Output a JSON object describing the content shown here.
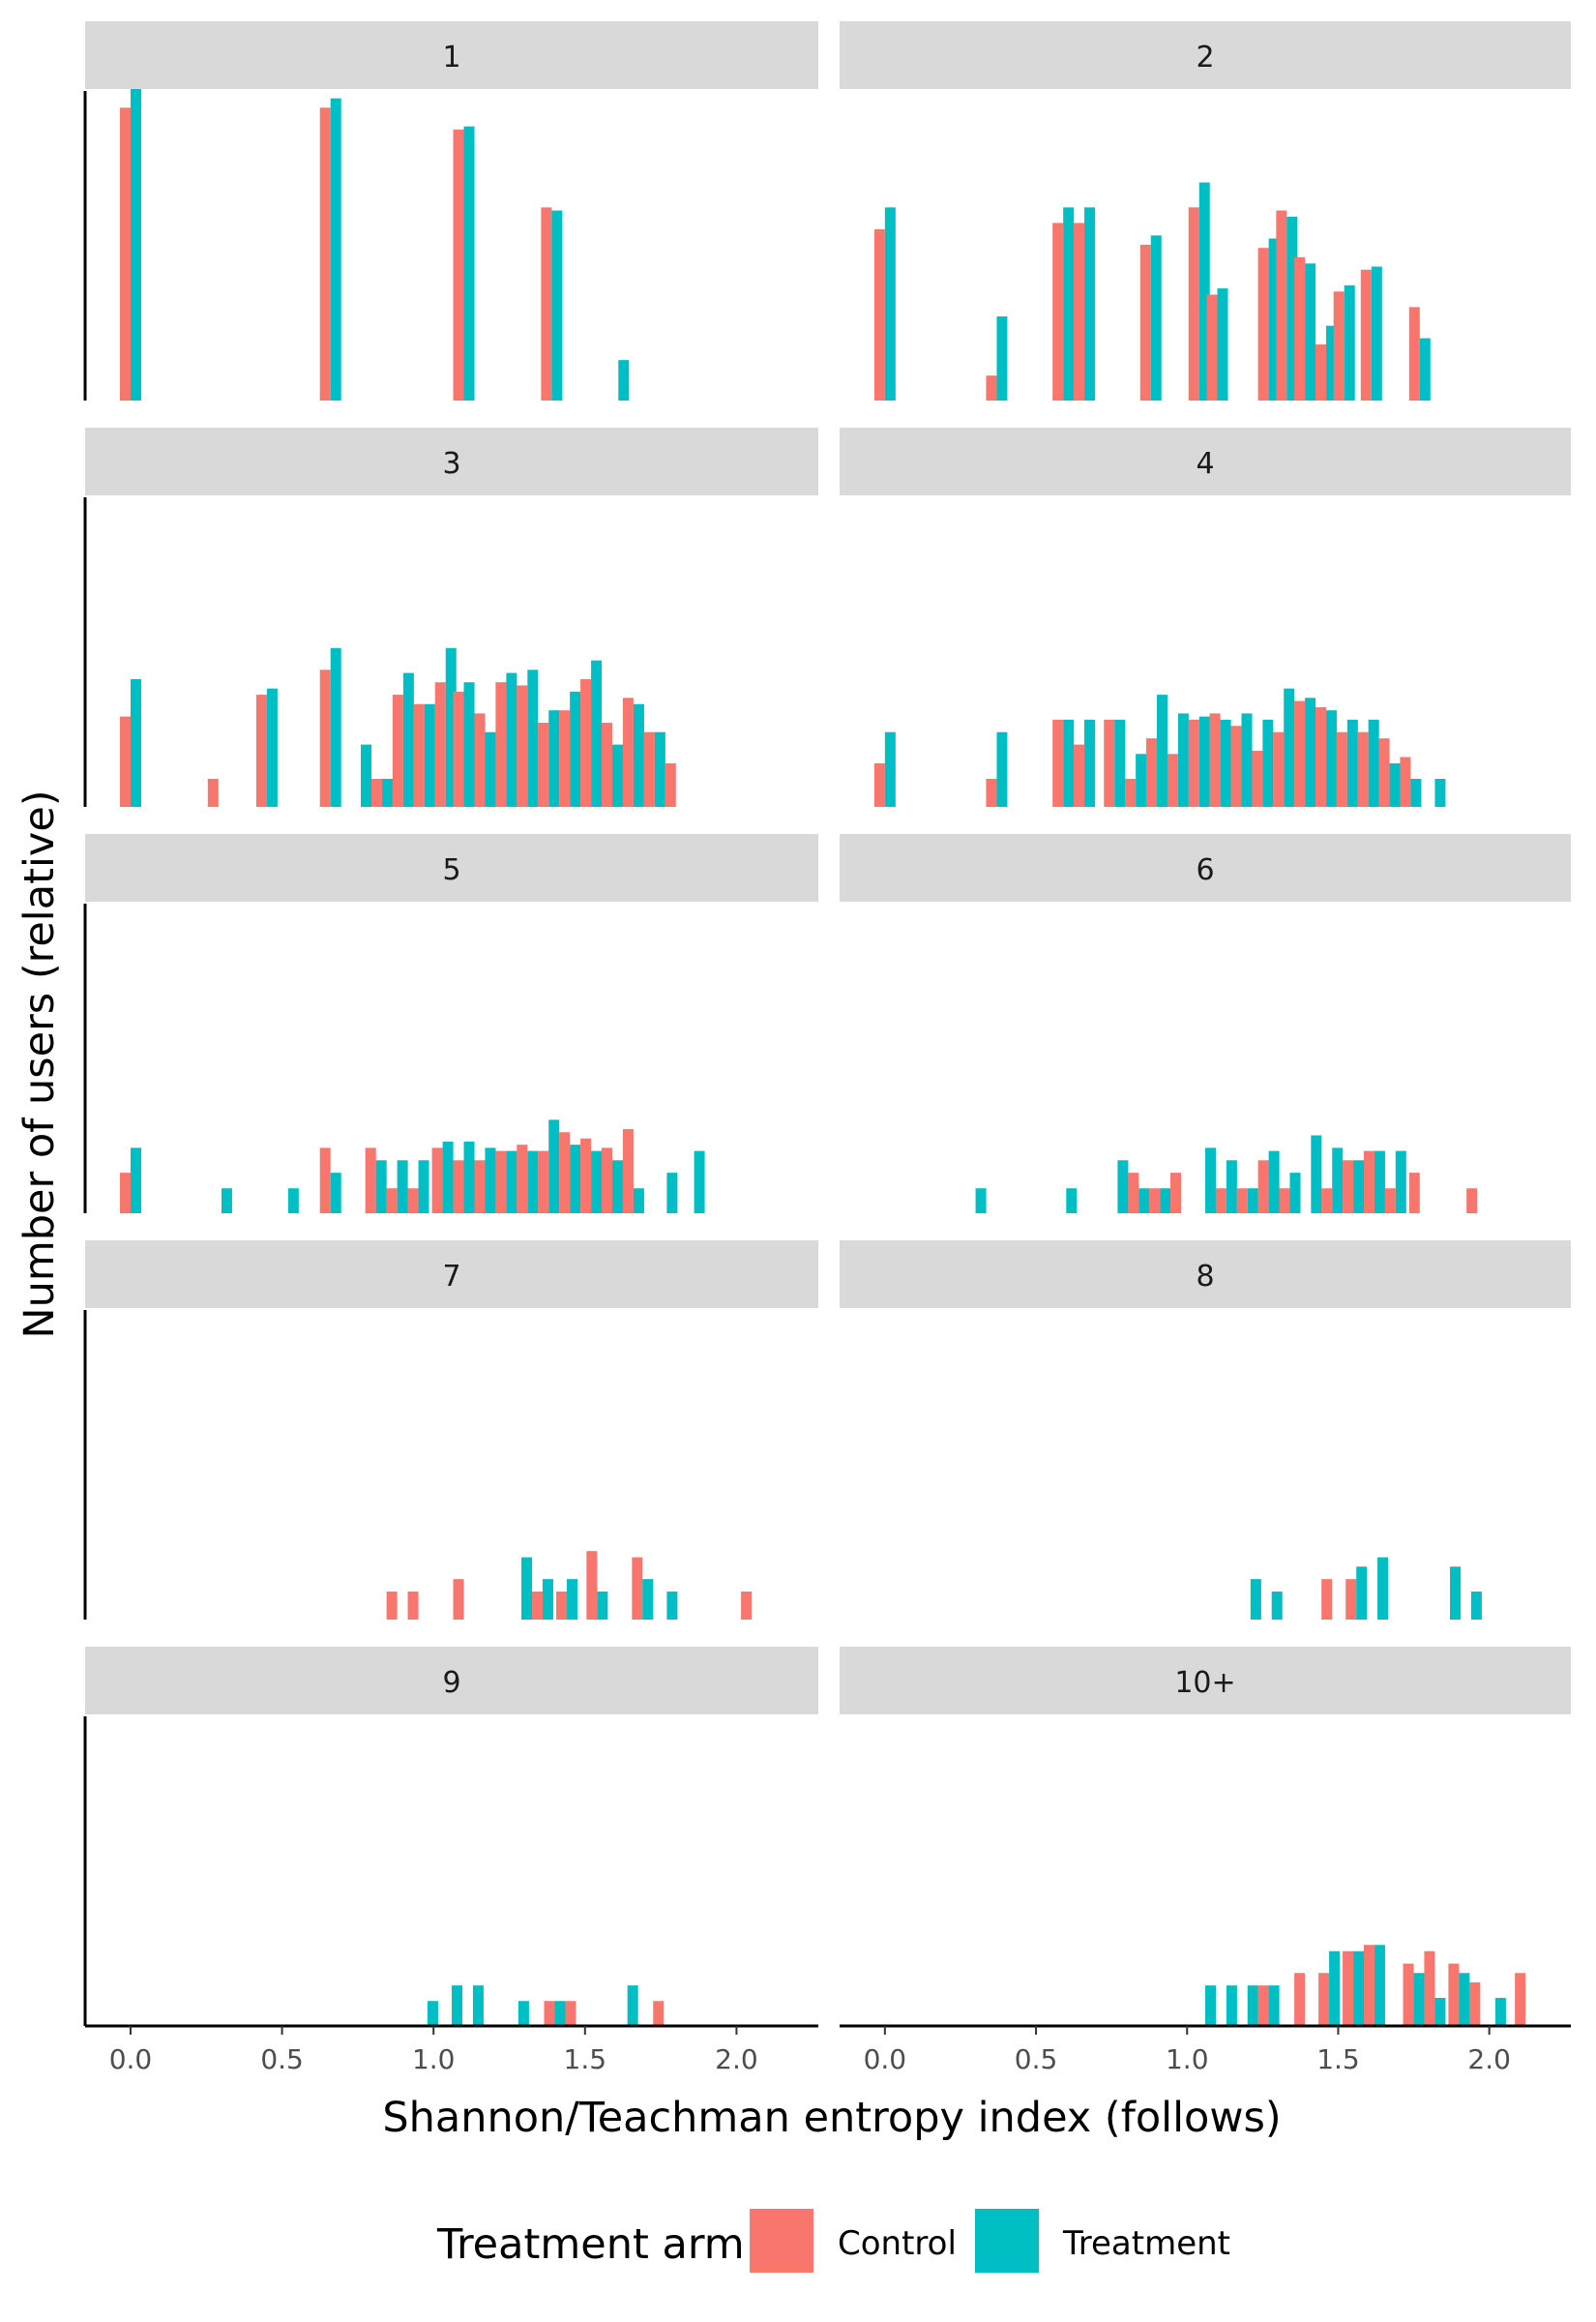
{
  "chart_data": {
    "type": "bar",
    "subtype": "faceted histogram (dodged)",
    "xlabel": "Shannon/Teachman entropy index (follows)",
    "ylabel": "Number of users (relative)",
    "x_ticks": [
      "0.0",
      "0.5",
      "1.0",
      "1.5",
      "2.0"
    ],
    "x_tick_values": [
      0.0,
      0.5,
      1.0,
      1.5,
      2.0
    ],
    "xlim": [
      -0.15,
      2.27
    ],
    "y_scale": "relative (free per facet, no tick labels)",
    "grid": false,
    "legend": {
      "title": "Treatment arm",
      "position": "bottom",
      "entries": [
        {
          "label": "Control",
          "color": "#F8766D"
        },
        {
          "label": "Treatment",
          "color": "#00BFC4"
        }
      ]
    },
    "series_colors": {
      "control": "#F8766D",
      "treatment": "#00BFC4"
    },
    "facets": [
      {
        "label": "1",
        "ymax": 1.0,
        "bins": [
          {
            "x": 0.0,
            "control": 0.94,
            "treatment": 1.0
          },
          {
            "x": 0.66,
            "control": 0.94,
            "treatment": 0.97
          },
          {
            "x": 1.1,
            "control": 0.87,
            "treatment": 0.88
          },
          {
            "x": 1.39,
            "control": 0.62,
            "treatment": 0.61
          },
          {
            "x": 1.61,
            "control": 0,
            "treatment": 0.13
          }
        ]
      },
      {
        "label": "2",
        "ymax": 1.0,
        "bins": [
          {
            "x": 0.0,
            "control": 0.55,
            "treatment": 0.62
          },
          {
            "x": 0.37,
            "control": 0.08,
            "treatment": 0.27
          },
          {
            "x": 0.59,
            "control": 0.57,
            "treatment": 0.62
          },
          {
            "x": 0.66,
            "control": 0.57,
            "treatment": 0.62
          },
          {
            "x": 0.88,
            "control": 0.5,
            "treatment": 0.53
          },
          {
            "x": 1.04,
            "control": 0.62,
            "treatment": 0.7
          },
          {
            "x": 1.1,
            "control": 0.34,
            "treatment": 0.36
          },
          {
            "x": 1.27,
            "control": 0.49,
            "treatment": 0.52
          },
          {
            "x": 1.33,
            "control": 0.61,
            "treatment": 0.59
          },
          {
            "x": 1.39,
            "control": 0.46,
            "treatment": 0.44
          },
          {
            "x": 1.46,
            "control": 0.18,
            "treatment": 0.24
          },
          {
            "x": 1.52,
            "control": 0.35,
            "treatment": 0.37
          },
          {
            "x": 1.61,
            "control": 0.42,
            "treatment": 0.43
          },
          {
            "x": 1.77,
            "control": 0.3,
            "treatment": 0.2
          }
        ]
      },
      {
        "label": "3",
        "ymax": 1.0,
        "bins": [
          {
            "x": 0.0,
            "control": 0.29,
            "treatment": 0.41
          },
          {
            "x": 0.29,
            "control": 0.09,
            "treatment": 0
          },
          {
            "x": 0.45,
            "control": 0.36,
            "treatment": 0.38
          },
          {
            "x": 0.66,
            "control": 0.44,
            "treatment": 0.51
          },
          {
            "x": 0.76,
            "control": 0,
            "treatment": 0.2
          },
          {
            "x": 0.83,
            "control": 0.09,
            "treatment": 0.09
          },
          {
            "x": 0.9,
            "control": 0.36,
            "treatment": 0.43
          },
          {
            "x": 0.97,
            "control": 0.33,
            "treatment": 0.33
          },
          {
            "x": 1.04,
            "control": 0.4,
            "treatment": 0.51
          },
          {
            "x": 1.1,
            "control": 0.37,
            "treatment": 0.4
          },
          {
            "x": 1.17,
            "control": 0.3,
            "treatment": 0.24
          },
          {
            "x": 1.24,
            "control": 0.4,
            "treatment": 0.43
          },
          {
            "x": 1.31,
            "control": 0.39,
            "treatment": 0.44
          },
          {
            "x": 1.38,
            "control": 0.27,
            "treatment": 0.31
          },
          {
            "x": 1.45,
            "control": 0.31,
            "treatment": 0.37
          },
          {
            "x": 1.52,
            "control": 0.41,
            "treatment": 0.47
          },
          {
            "x": 1.59,
            "control": 0.27,
            "treatment": 0.2
          },
          {
            "x": 1.66,
            "control": 0.35,
            "treatment": 0.33
          },
          {
            "x": 1.73,
            "control": 0.24,
            "treatment": 0.24
          },
          {
            "x": 1.8,
            "control": 0.14,
            "treatment": 0
          }
        ]
      },
      {
        "label": "4",
        "ymax": 1.0,
        "bins": [
          {
            "x": 0.0,
            "control": 0.14,
            "treatment": 0.24
          },
          {
            "x": 0.37,
            "control": 0.09,
            "treatment": 0.24
          },
          {
            "x": 0.59,
            "control": 0.28,
            "treatment": 0.28
          },
          {
            "x": 0.66,
            "control": 0.2,
            "treatment": 0.28
          },
          {
            "x": 0.76,
            "control": 0.28,
            "treatment": 0.28
          },
          {
            "x": 0.83,
            "control": 0.09,
            "treatment": 0.17
          },
          {
            "x": 0.9,
            "control": 0.22,
            "treatment": 0.36
          },
          {
            "x": 0.97,
            "control": 0.17,
            "treatment": 0.3
          },
          {
            "x": 1.04,
            "control": 0.28,
            "treatment": 0.29
          },
          {
            "x": 1.11,
            "control": 0.3,
            "treatment": 0.28
          },
          {
            "x": 1.18,
            "control": 0.26,
            "treatment": 0.3
          },
          {
            "x": 1.25,
            "control": 0.18,
            "treatment": 0.28
          },
          {
            "x": 1.32,
            "control": 0.24,
            "treatment": 0.38
          },
          {
            "x": 1.39,
            "control": 0.34,
            "treatment": 0.35
          },
          {
            "x": 1.46,
            "control": 0.32,
            "treatment": 0.31
          },
          {
            "x": 1.53,
            "control": 0.24,
            "treatment": 0.28
          },
          {
            "x": 1.6,
            "control": 0.24,
            "treatment": 0.28
          },
          {
            "x": 1.67,
            "control": 0.22,
            "treatment": 0.14
          },
          {
            "x": 1.74,
            "control": 0.16,
            "treatment": 0.09
          },
          {
            "x": 1.82,
            "control": 0,
            "treatment": 0.09
          }
        ]
      },
      {
        "label": "5",
        "ymax": 1.0,
        "bins": [
          {
            "x": 0.0,
            "control": 0.13,
            "treatment": 0.21
          },
          {
            "x": 0.3,
            "control": 0,
            "treatment": 0.08
          },
          {
            "x": 0.52,
            "control": 0,
            "treatment": 0.08
          },
          {
            "x": 0.66,
            "control": 0.21,
            "treatment": 0.13
          },
          {
            "x": 0.81,
            "control": 0.21,
            "treatment": 0.17
          },
          {
            "x": 0.88,
            "control": 0.08,
            "treatment": 0.17
          },
          {
            "x": 0.95,
            "control": 0.08,
            "treatment": 0.17
          },
          {
            "x": 1.03,
            "control": 0.21,
            "treatment": 0.23
          },
          {
            "x": 1.1,
            "control": 0.17,
            "treatment": 0.23
          },
          {
            "x": 1.17,
            "control": 0.17,
            "treatment": 0.21
          },
          {
            "x": 1.24,
            "control": 0.2,
            "treatment": 0.2
          },
          {
            "x": 1.31,
            "control": 0.22,
            "treatment": 0.2
          },
          {
            "x": 1.38,
            "control": 0.2,
            "treatment": 0.3
          },
          {
            "x": 1.45,
            "control": 0.26,
            "treatment": 0.22
          },
          {
            "x": 1.52,
            "control": 0.24,
            "treatment": 0.2
          },
          {
            "x": 1.59,
            "control": 0.21,
            "treatment": 0.17
          },
          {
            "x": 1.66,
            "control": 0.27,
            "treatment": 0.08
          },
          {
            "x": 1.77,
            "control": 0,
            "treatment": 0.13
          },
          {
            "x": 1.86,
            "control": 0,
            "treatment": 0.2
          }
        ]
      },
      {
        "label": "6",
        "ymax": 1.0,
        "bins": [
          {
            "x": 0.3,
            "control": 0,
            "treatment": 0.08
          },
          {
            "x": 0.6,
            "control": 0,
            "treatment": 0.08
          },
          {
            "x": 0.77,
            "control": 0,
            "treatment": 0.17
          },
          {
            "x": 0.84,
            "control": 0.13,
            "treatment": 0.08
          },
          {
            "x": 0.91,
            "control": 0.08,
            "treatment": 0.08
          },
          {
            "x": 0.98,
            "control": 0.13,
            "treatment": 0
          },
          {
            "x": 1.06,
            "control": 0,
            "treatment": 0.21
          },
          {
            "x": 1.13,
            "control": 0.08,
            "treatment": 0.17
          },
          {
            "x": 1.2,
            "control": 0.08,
            "treatment": 0.08
          },
          {
            "x": 1.27,
            "control": 0.17,
            "treatment": 0.2
          },
          {
            "x": 1.34,
            "control": 0.08,
            "treatment": 0.13
          },
          {
            "x": 1.41,
            "control": 0,
            "treatment": 0.25
          },
          {
            "x": 1.48,
            "control": 0.08,
            "treatment": 0.21
          },
          {
            "x": 1.55,
            "control": 0.17,
            "treatment": 0.17
          },
          {
            "x": 1.62,
            "control": 0.2,
            "treatment": 0.2
          },
          {
            "x": 1.69,
            "control": 0.08,
            "treatment": 0.2
          },
          {
            "x": 1.77,
            "control": 0.13,
            "treatment": 0
          },
          {
            "x": 1.96,
            "control": 0.08,
            "treatment": 0
          }
        ]
      },
      {
        "label": "7",
        "ymax": 1.0,
        "bins": [
          {
            "x": 0.88,
            "control": 0.09,
            "treatment": 0
          },
          {
            "x": 0.95,
            "control": 0.09,
            "treatment": 0
          },
          {
            "x": 1.1,
            "control": 0.13,
            "treatment": 0
          },
          {
            "x": 1.29,
            "control": 0,
            "treatment": 0.2
          },
          {
            "x": 1.36,
            "control": 0.09,
            "treatment": 0.13
          },
          {
            "x": 1.44,
            "control": 0.09,
            "treatment": 0.13
          },
          {
            "x": 1.54,
            "control": 0.22,
            "treatment": 0.09
          },
          {
            "x": 1.69,
            "control": 0.2,
            "treatment": 0.13
          },
          {
            "x": 1.77,
            "control": 0,
            "treatment": 0.09
          },
          {
            "x": 2.05,
            "control": 0.09,
            "treatment": 0
          }
        ]
      },
      {
        "label": "8",
        "ymax": 1.0,
        "bins": [
          {
            "x": 1.21,
            "control": 0,
            "treatment": 0.13
          },
          {
            "x": 1.28,
            "control": 0,
            "treatment": 0.09
          },
          {
            "x": 1.48,
            "control": 0.13,
            "treatment": 0
          },
          {
            "x": 1.56,
            "control": 0.13,
            "treatment": 0.17
          },
          {
            "x": 1.63,
            "control": 0,
            "treatment": 0.2
          },
          {
            "x": 1.87,
            "control": 0,
            "treatment": 0.17
          },
          {
            "x": 1.94,
            "control": 0,
            "treatment": 0.09
          }
        ]
      },
      {
        "label": "9",
        "ymax": 1.0,
        "bins": [
          {
            "x": 0.98,
            "control": 0,
            "treatment": 0.08
          },
          {
            "x": 1.06,
            "control": 0,
            "treatment": 0.13
          },
          {
            "x": 1.13,
            "control": 0,
            "treatment": 0.13
          },
          {
            "x": 1.28,
            "control": 0,
            "treatment": 0.08
          },
          {
            "x": 1.4,
            "control": 0.08,
            "treatment": 0.08
          },
          {
            "x": 1.47,
            "control": 0.08,
            "treatment": 0
          },
          {
            "x": 1.64,
            "control": 0,
            "treatment": 0.13
          },
          {
            "x": 1.76,
            "control": 0.08,
            "treatment": 0
          }
        ]
      },
      {
        "label": "10+",
        "ymax": 1.0,
        "bins": [
          {
            "x": 1.06,
            "control": 0,
            "treatment": 0.13
          },
          {
            "x": 1.13,
            "control": 0,
            "treatment": 0.13
          },
          {
            "x": 1.2,
            "control": 0,
            "treatment": 0.13
          },
          {
            "x": 1.27,
            "control": 0.13,
            "treatment": 0.13
          },
          {
            "x": 1.39,
            "control": 0.17,
            "treatment": 0
          },
          {
            "x": 1.47,
            "control": 0.17,
            "treatment": 0.24
          },
          {
            "x": 1.55,
            "control": 0.24,
            "treatment": 0.24
          },
          {
            "x": 1.62,
            "control": 0.26,
            "treatment": 0.26
          },
          {
            "x": 1.75,
            "control": 0.2,
            "treatment": 0.17
          },
          {
            "x": 1.82,
            "control": 0.24,
            "treatment": 0.09
          },
          {
            "x": 1.9,
            "control": 0.2,
            "treatment": 0.17
          },
          {
            "x": 1.97,
            "control": 0.14,
            "treatment": 0
          },
          {
            "x": 2.02,
            "control": 0,
            "treatment": 0.09
          },
          {
            "x": 2.12,
            "control": 0.17,
            "treatment": 0
          }
        ]
      }
    ]
  }
}
